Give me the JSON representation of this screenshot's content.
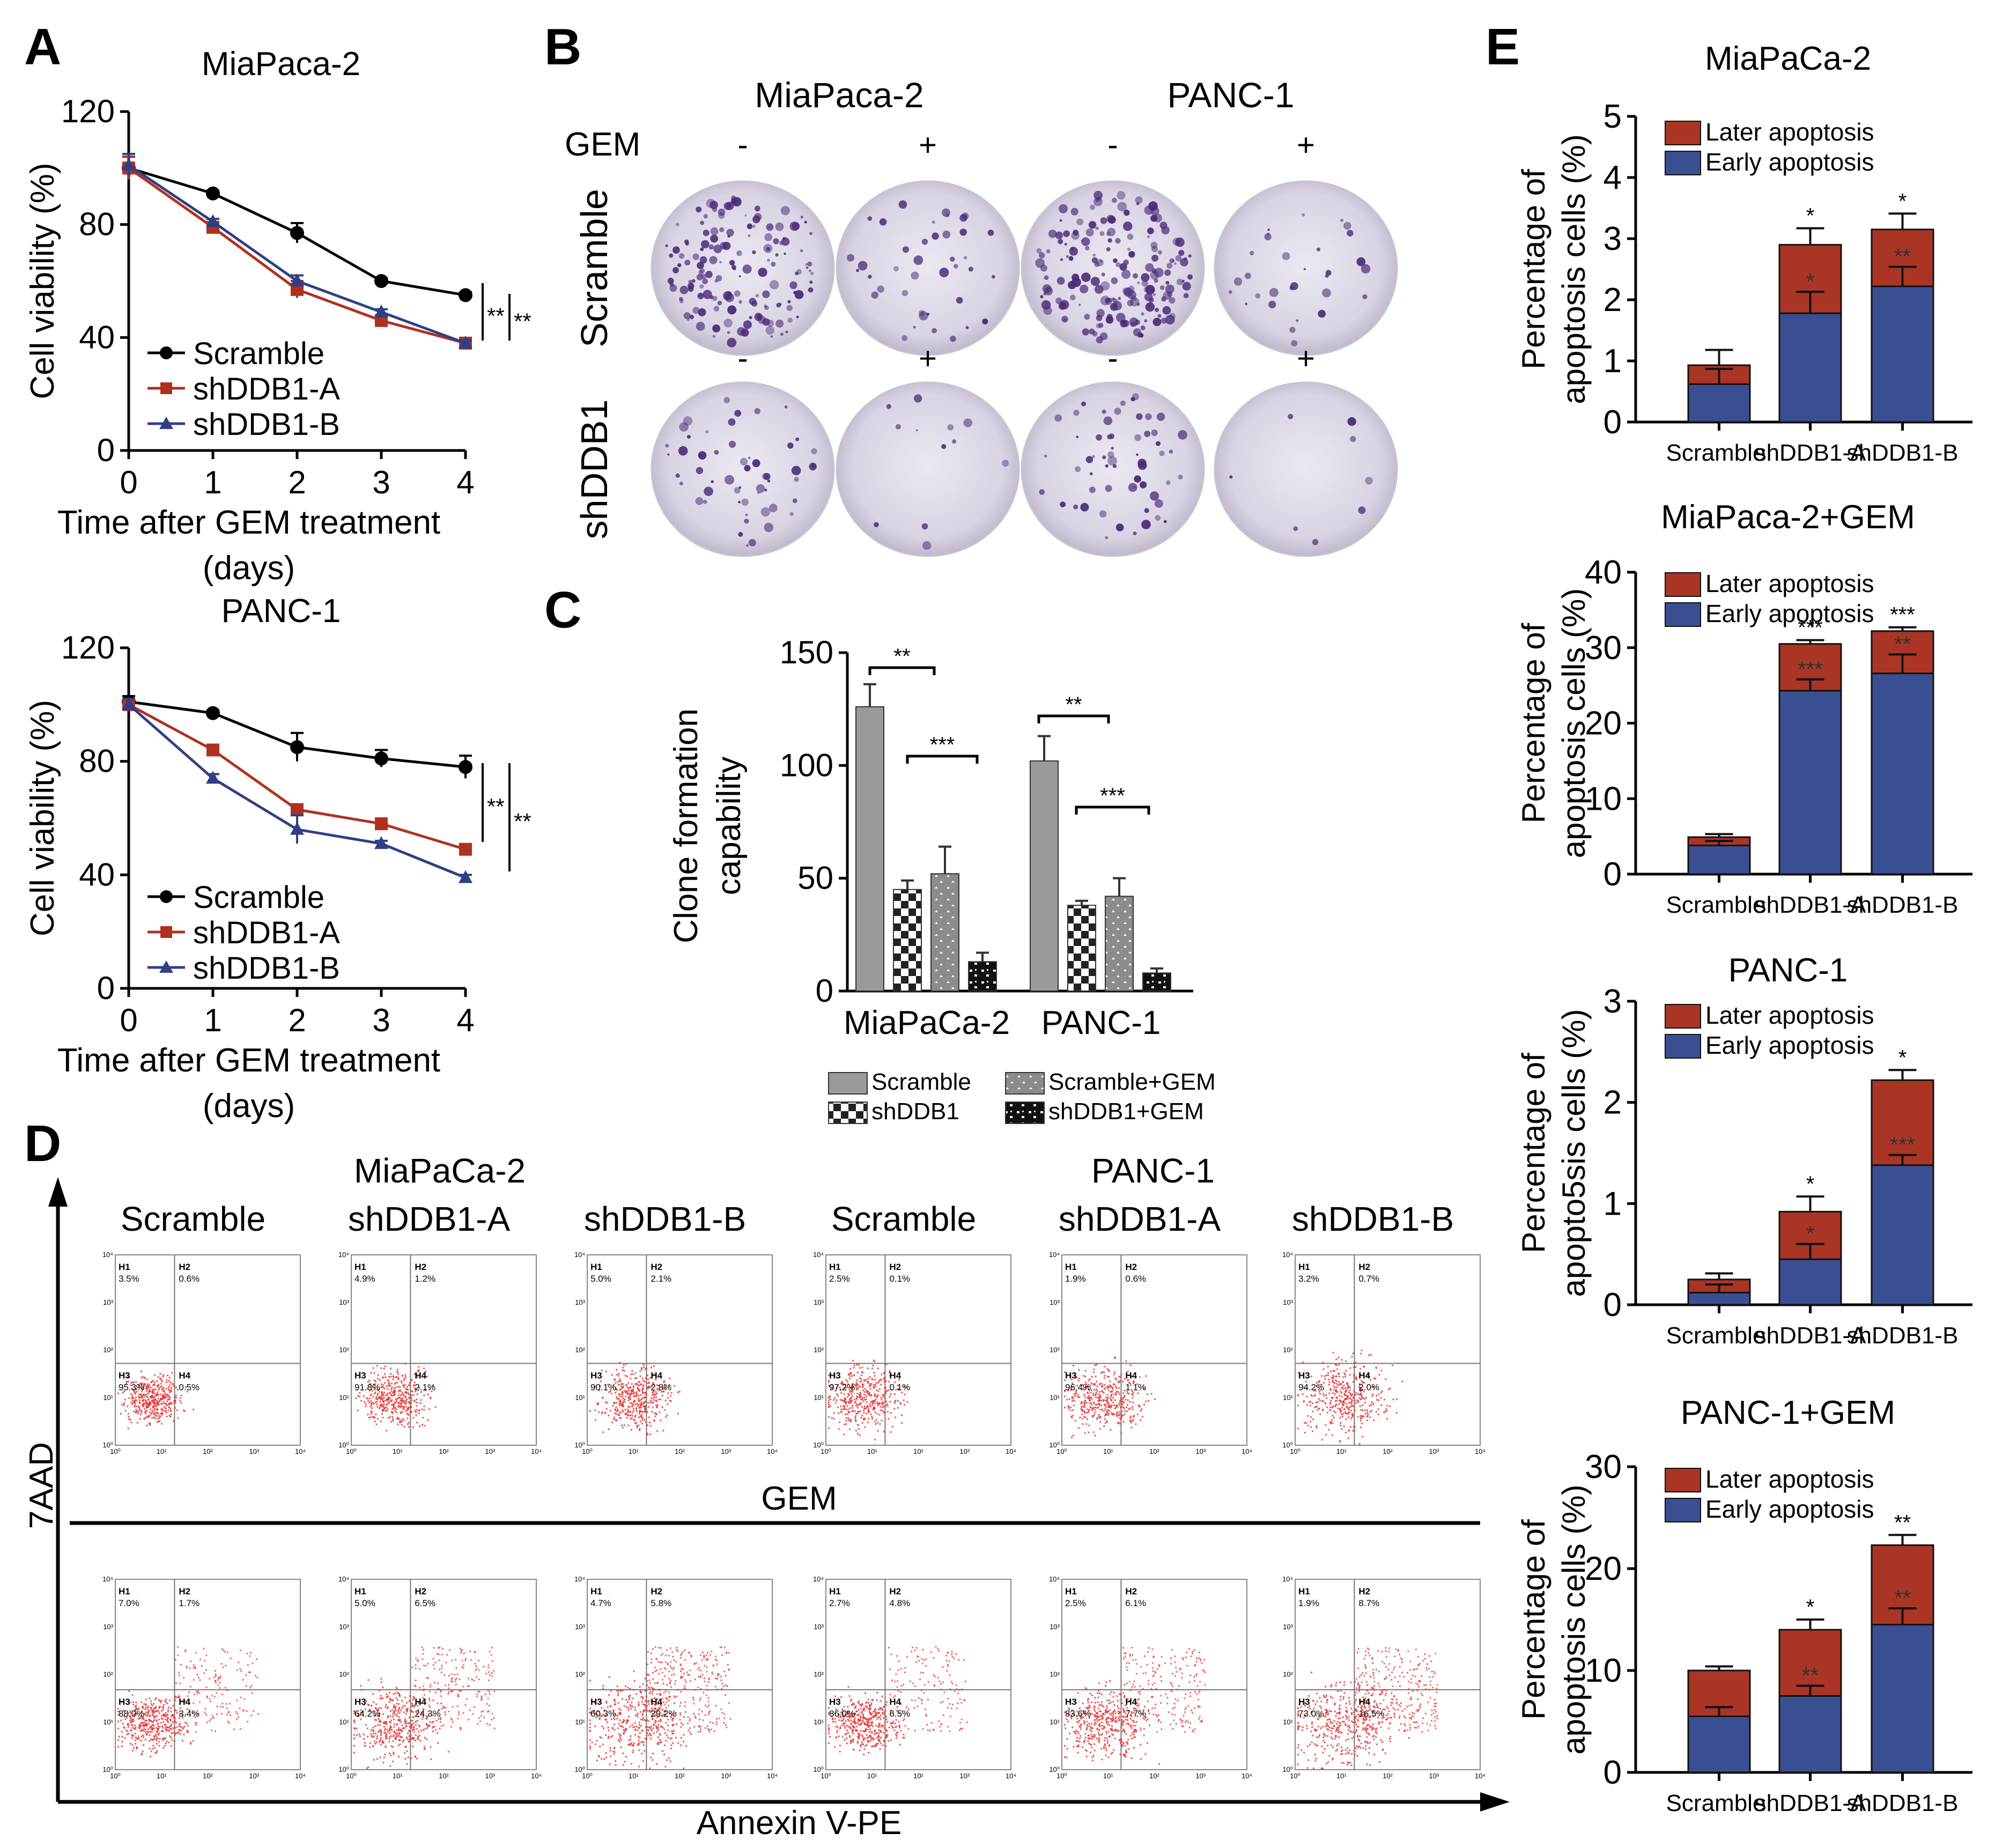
{
  "colors": {
    "black": "#000000",
    "red": "#b03020",
    "blue": "#2f3f86",
    "laterFill": "#aa3525",
    "earlyFill": "#3a4f92",
    "gray": "#9a9a9a",
    "dot": "#e53030",
    "purple": "#4a2a7a"
  },
  "panels": {
    "A": "A",
    "B": "B",
    "C": "C",
    "D": "D",
    "E": "E"
  },
  "panelA": {
    "xlabel1": "Time after GEM treatment",
    "xlabel2": "(days)",
    "ylabel": "Cell viability (%)",
    "legend": [
      "Scramble",
      "shDDB1-A",
      "shDDB1-B"
    ],
    "sig1": "**",
    "sig2": "**",
    "charts": [
      {
        "title": "MiaPaca-2",
        "x": [
          0,
          1,
          2,
          3,
          4
        ],
        "yticks": [
          0,
          40,
          80,
          120
        ],
        "series": [
          {
            "name": "Scramble",
            "values": [
              100,
              91,
              77,
              60,
              55
            ],
            "err": [
              4,
              1,
              3.5,
              1,
              1
            ]
          },
          {
            "name": "shDDB1-A",
            "values": [
              100,
              79,
              57,
              46,
              38
            ],
            "err": [
              4,
              1,
              3,
              1.5,
              1
            ]
          },
          {
            "name": "shDDB1-B",
            "values": [
              101,
              81,
              60,
              49,
              38
            ],
            "err": [
              4,
              1,
              2,
              1,
              1
            ]
          }
        ]
      },
      {
        "title": "PANC-1",
        "x": [
          0,
          1,
          2,
          3,
          4
        ],
        "yticks": [
          0,
          40,
          80,
          120
        ],
        "series": [
          {
            "name": "Scramble",
            "values": [
              101,
              97,
              85,
              81,
              78
            ],
            "err": [
              2,
              1,
              5,
              3,
              4
            ]
          },
          {
            "name": "shDDB1-A",
            "values": [
              100,
              84,
              63,
              58,
              49
            ],
            "err": [
              2,
              1.5,
              1.5,
              1.5,
              1
            ]
          },
          {
            "name": "shDDB1-B",
            "values": [
              100,
              74,
              56,
              51,
              39
            ],
            "err": [
              2,
              1.5,
              5,
              1,
              1
            ]
          }
        ]
      }
    ]
  },
  "panelB": {
    "col_groups": [
      "MiaPaca-2",
      "PANC-1"
    ],
    "gem_label": "GEM",
    "gem_signs": [
      "-",
      "+",
      "-",
      "+"
    ],
    "rows": [
      "Scramble",
      "shDDB1"
    ]
  },
  "chart_data": [
    {
      "type": "bar",
      "id": "C",
      "ylabel1": "Clone formation",
      "ylabel2": "capability",
      "groups": [
        "MiaPaCa-2",
        "PANC-1"
      ],
      "ylim": [
        0,
        150
      ],
      "yticks": [
        0,
        50,
        100,
        150
      ],
      "series": [
        {
          "name": "Scramble",
          "values": [
            126,
            102
          ],
          "err": [
            10,
            11
          ]
        },
        {
          "name": "shDDB1",
          "values": [
            45,
            38
          ],
          "err": [
            4,
            2
          ]
        },
        {
          "name": "Scramble+GEM",
          "values": [
            52,
            42
          ],
          "err": [
            12,
            8
          ]
        },
        {
          "name": "shDDB1+GEM",
          "values": [
            13,
            8
          ],
          "err": [
            4,
            2
          ]
        }
      ],
      "sig": [
        "**",
        "***",
        "**",
        "***"
      ]
    },
    {
      "type": "stacked-bar",
      "id": "E1",
      "title": "MiaPaCa-2",
      "ylabel1": "Percentage of",
      "ylabel2": "apoptosis cells (%)",
      "categories": [
        "Scramble",
        "shDDB1-A",
        "shDDB1-B"
      ],
      "ylim": [
        0,
        5
      ],
      "yticks": [
        0,
        1,
        2,
        3,
        4,
        5
      ],
      "legend": [
        "Later apoptosis",
        "Early apoptosis"
      ],
      "early": [
        0.62,
        1.78,
        2.22
      ],
      "early_err": [
        0.25,
        0.35,
        0.32
      ],
      "total": [
        0.93,
        2.9,
        3.15
      ],
      "total_err": [
        0.25,
        0.27,
        0.26
      ],
      "sig_top": [
        "",
        "*",
        "*"
      ],
      "sig_inner": [
        "",
        "*",
        "**"
      ]
    },
    {
      "type": "stacked-bar",
      "id": "E2",
      "title": "MiaPaca-2+GEM",
      "ylabel1": "Percentage of",
      "ylabel2": "apoptosis cells (%)",
      "categories": [
        "Scramble",
        "shDDB1-A",
        "shDDB1-B"
      ],
      "ylim": [
        0,
        40
      ],
      "yticks": [
        0,
        10,
        20,
        30,
        40
      ],
      "legend": [
        "Later apoptosis",
        "Early apoptosis"
      ],
      "early": [
        3.8,
        24.3,
        26.6
      ],
      "early_err": [
        0.6,
        1.5,
        2.5
      ],
      "total": [
        4.9,
        30.5,
        32.2
      ],
      "total_err": [
        0.4,
        0.5,
        0.5
      ],
      "sig_top": [
        "",
        "***",
        "***"
      ],
      "sig_inner": [
        "",
        "***",
        "**"
      ]
    },
    {
      "type": "stacked-bar",
      "id": "E3",
      "title": "PANC-1",
      "ylabel1": "Percentage of",
      "ylabel2": "apopto5sis cells (%)",
      "categories": [
        "Scramble",
        "shDDB1-A",
        "shDDB1-B"
      ],
      "ylim": [
        0,
        3
      ],
      "yticks": [
        0,
        1,
        2,
        3
      ],
      "legend": [
        "Later apoptosis",
        "Early apoptosis"
      ],
      "early": [
        0.12,
        0.45,
        1.38
      ],
      "early_err": [
        0.08,
        0.15,
        0.1
      ],
      "total": [
        0.25,
        0.92,
        2.22
      ],
      "total_err": [
        0.06,
        0.15,
        0.1
      ],
      "sig_top": [
        "",
        "*",
        "*"
      ],
      "sig_inner": [
        "",
        "*",
        "***"
      ]
    },
    {
      "type": "stacked-bar",
      "id": "E4",
      "title": "PANC-1+GEM",
      "ylabel1": "Percentage of",
      "ylabel2": "apoptosis cells (%)",
      "categories": [
        "Scramble",
        "shDDB1-A",
        "shDDB1-B"
      ],
      "ylim": [
        0,
        30
      ],
      "yticks": [
        0,
        10,
        20,
        30
      ],
      "legend": [
        "Later apoptosis",
        "Early apoptosis"
      ],
      "early": [
        5.5,
        7.5,
        14.5
      ],
      "early_err": [
        0.9,
        1.0,
        1.6
      ],
      "total": [
        10.0,
        14.0,
        22.3
      ],
      "total_err": [
        0.4,
        1.0,
        1.0
      ],
      "sig_top": [
        "",
        "*",
        "**"
      ],
      "sig_inner": [
        "",
        "**",
        "**"
      ]
    }
  ],
  "panelD": {
    "group_titles": [
      "MiaPaCa-2",
      "PANC-1"
    ],
    "col_labels": [
      "Scramble",
      "shDDB1-A",
      "shDDB1-B",
      "Scramble",
      "shDDB1-A",
      "shDDB1-B"
    ],
    "yaxis": "7AAD",
    "xaxis": "Annexin V-PE",
    "gem": "GEM",
    "quadrant_names": [
      "H1",
      "H2",
      "H3",
      "H4"
    ],
    "tick_labels": [
      "10⁰",
      "10¹",
      "10²",
      "10³",
      "10⁴"
    ],
    "rows": [
      [
        [
          "3.5%",
          "0.6%",
          "95.3%",
          "0.5%"
        ],
        [
          "4.9%",
          "1.2%",
          "91.8%",
          "2.1%"
        ],
        [
          "5.0%",
          "2.1%",
          "90.1%",
          "2.8%"
        ],
        [
          "2.5%",
          "0.1%",
          "97.2%",
          "0.1%"
        ],
        [
          "1.9%",
          "0.6%",
          "96.4%",
          "1.1%"
        ],
        [
          "3.2%",
          "0.7%",
          "94.2%",
          "2.0%"
        ]
      ],
      [
        [
          "7.0%",
          "1.7%",
          "88.0%",
          "3.4%"
        ],
        [
          "5.0%",
          "6.5%",
          "64.2%",
          "24.3%"
        ],
        [
          "4.7%",
          "5.8%",
          "60.3%",
          "29.2%"
        ],
        [
          "2.7%",
          "4.8%",
          "86.0%",
          "6.5%"
        ],
        [
          "2.5%",
          "6.1%",
          "83.6%",
          "7.7%"
        ],
        [
          "1.9%",
          "8.7%",
          "73.0%",
          "16.5%"
        ]
      ]
    ]
  }
}
